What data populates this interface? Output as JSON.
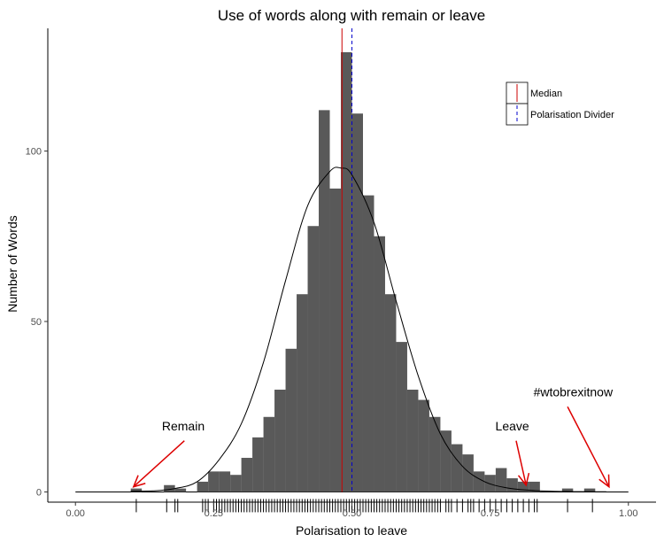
{
  "chart_data": {
    "type": "bar",
    "title": "Use of words along with remain or leave",
    "xlabel": "Polarisation to leave",
    "ylabel": "Number of Words",
    "xlim": [
      -0.05,
      1.05
    ],
    "ylim": [
      -3,
      136
    ],
    "x_ticks": [
      0.0,
      0.25,
      0.5,
      0.75,
      1.0
    ],
    "x_tick_labels": [
      "0.00",
      "0.25",
      "0.50",
      "0.75",
      "1.00"
    ],
    "y_ticks": [
      0,
      50,
      100
    ],
    "y_tick_labels": [
      "0",
      "50",
      "100"
    ],
    "bin_width": 0.02,
    "bins": [
      {
        "x": 0.11,
        "count": 1
      },
      {
        "x": 0.17,
        "count": 2
      },
      {
        "x": 0.19,
        "count": 1
      },
      {
        "x": 0.23,
        "count": 3
      },
      {
        "x": 0.25,
        "count": 6
      },
      {
        "x": 0.27,
        "count": 6
      },
      {
        "x": 0.29,
        "count": 5
      },
      {
        "x": 0.31,
        "count": 10
      },
      {
        "x": 0.33,
        "count": 16
      },
      {
        "x": 0.35,
        "count": 22
      },
      {
        "x": 0.37,
        "count": 30
      },
      {
        "x": 0.39,
        "count": 42
      },
      {
        "x": 0.41,
        "count": 58
      },
      {
        "x": 0.43,
        "count": 78
      },
      {
        "x": 0.45,
        "count": 112
      },
      {
        "x": 0.47,
        "count": 89
      },
      {
        "x": 0.49,
        "count": 129
      },
      {
        "x": 0.51,
        "count": 111
      },
      {
        "x": 0.53,
        "count": 87
      },
      {
        "x": 0.55,
        "count": 75
      },
      {
        "x": 0.57,
        "count": 58
      },
      {
        "x": 0.59,
        "count": 44
      },
      {
        "x": 0.61,
        "count": 30
      },
      {
        "x": 0.63,
        "count": 27
      },
      {
        "x": 0.65,
        "count": 22
      },
      {
        "x": 0.67,
        "count": 18
      },
      {
        "x": 0.69,
        "count": 14
      },
      {
        "x": 0.71,
        "count": 11
      },
      {
        "x": 0.73,
        "count": 6
      },
      {
        "x": 0.75,
        "count": 5
      },
      {
        "x": 0.77,
        "count": 7
      },
      {
        "x": 0.79,
        "count": 4
      },
      {
        "x": 0.81,
        "count": 3
      },
      {
        "x": 0.83,
        "count": 3
      },
      {
        "x": 0.89,
        "count": 1
      },
      {
        "x": 0.93,
        "count": 1
      }
    ],
    "density_curve": {
      "x": [
        0.1,
        0.14,
        0.18,
        0.22,
        0.26,
        0.3,
        0.34,
        0.38,
        0.42,
        0.46,
        0.48,
        0.5,
        0.54,
        0.58,
        0.62,
        0.66,
        0.7,
        0.74,
        0.78,
        0.82,
        0.86,
        0.9,
        0.94,
        0.96
      ],
      "y": [
        0.2,
        0.3,
        1.0,
        3.0,
        9.5,
        20,
        38,
        62,
        84,
        94,
        95,
        93,
        79,
        56,
        34,
        17,
        7.5,
        3,
        1.2,
        0.5,
        0.2,
        0.1,
        0.05,
        0.05
      ],
      "color": "#000000"
    },
    "median": {
      "x": 0.482,
      "label": "Median",
      "color": "#cc0000"
    },
    "divider": {
      "x": 0.5,
      "label": "Polarisation Divider",
      "color": "#0000cc"
    },
    "rug": [
      0.11,
      0.165,
      0.18,
      0.185,
      0.23,
      0.235,
      0.24,
      0.25,
      0.255,
      0.26,
      0.265,
      0.27,
      0.275,
      0.28,
      0.285,
      0.29,
      0.295,
      0.3,
      0.305,
      0.31,
      0.315,
      0.32,
      0.325,
      0.33,
      0.335,
      0.34,
      0.345,
      0.35,
      0.355,
      0.36,
      0.365,
      0.37,
      0.375,
      0.38,
      0.385,
      0.39,
      0.395,
      0.4,
      0.405,
      0.41,
      0.415,
      0.42,
      0.425,
      0.43,
      0.435,
      0.44,
      0.445,
      0.45,
      0.455,
      0.46,
      0.465,
      0.47,
      0.475,
      0.48,
      0.485,
      0.49,
      0.495,
      0.5,
      0.505,
      0.51,
      0.515,
      0.52,
      0.525,
      0.53,
      0.535,
      0.54,
      0.545,
      0.55,
      0.555,
      0.56,
      0.565,
      0.57,
      0.575,
      0.58,
      0.585,
      0.59,
      0.595,
      0.6,
      0.605,
      0.61,
      0.615,
      0.62,
      0.625,
      0.63,
      0.635,
      0.64,
      0.645,
      0.65,
      0.655,
      0.66,
      0.67,
      0.675,
      0.68,
      0.69,
      0.7,
      0.71,
      0.715,
      0.72,
      0.73,
      0.74,
      0.75,
      0.76,
      0.77,
      0.78,
      0.79,
      0.8,
      0.81,
      0.82,
      0.83,
      0.835,
      0.89,
      0.935
    ],
    "annotations": [
      {
        "label": "Remain",
        "text_x": 0.195,
        "text_y": 18,
        "arrow_from": [
          0.197,
          15
        ],
        "arrow_to": [
          0.105,
          1.5
        ]
      },
      {
        "label": "Leave",
        "text_x": 0.79,
        "text_y": 18,
        "arrow_from": [
          0.797,
          15
        ],
        "arrow_to": [
          0.815,
          2
        ]
      },
      {
        "label": "#wtobrexitnow",
        "text_x": 0.9,
        "text_y": 28,
        "arrow_from": [
          0.89,
          25
        ],
        "arrow_to": [
          0.965,
          1.5
        ]
      }
    ],
    "annotation_color": "#dd0000",
    "bar_color": "#595959",
    "legend_position": "top-right",
    "grid": false
  }
}
